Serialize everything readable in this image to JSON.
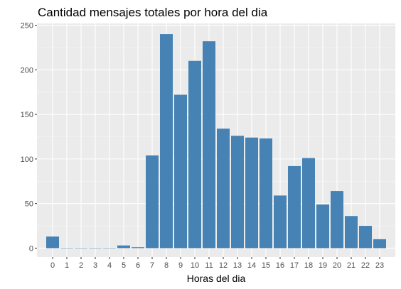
{
  "chart_data": {
    "type": "bar",
    "title": "Cantidad mensajes totales por hora del dia",
    "xlabel": "Horas del dia",
    "ylabel": "",
    "categories": [
      "0",
      "1",
      "2",
      "3",
      "4",
      "5",
      "6",
      "7",
      "8",
      "9",
      "10",
      "11",
      "12",
      "13",
      "14",
      "15",
      "16",
      "17",
      "18",
      "19",
      "20",
      "21",
      "22",
      "23"
    ],
    "values": [
      13,
      0,
      0,
      0,
      0,
      3,
      1,
      104,
      240,
      172,
      210,
      232,
      134,
      126,
      124,
      123,
      59,
      92,
      101,
      49,
      64,
      36,
      25,
      10
    ],
    "ylim": [
      -10,
      252
    ],
    "yticks": [
      "0",
      "50",
      "100",
      "150",
      "200",
      "250"
    ],
    "grid": true,
    "colors": {
      "bar": "#4682b4",
      "panel": "#ebebeb",
      "grid_major": "#ffffff",
      "grid_minor": "#f5f5f5"
    }
  }
}
